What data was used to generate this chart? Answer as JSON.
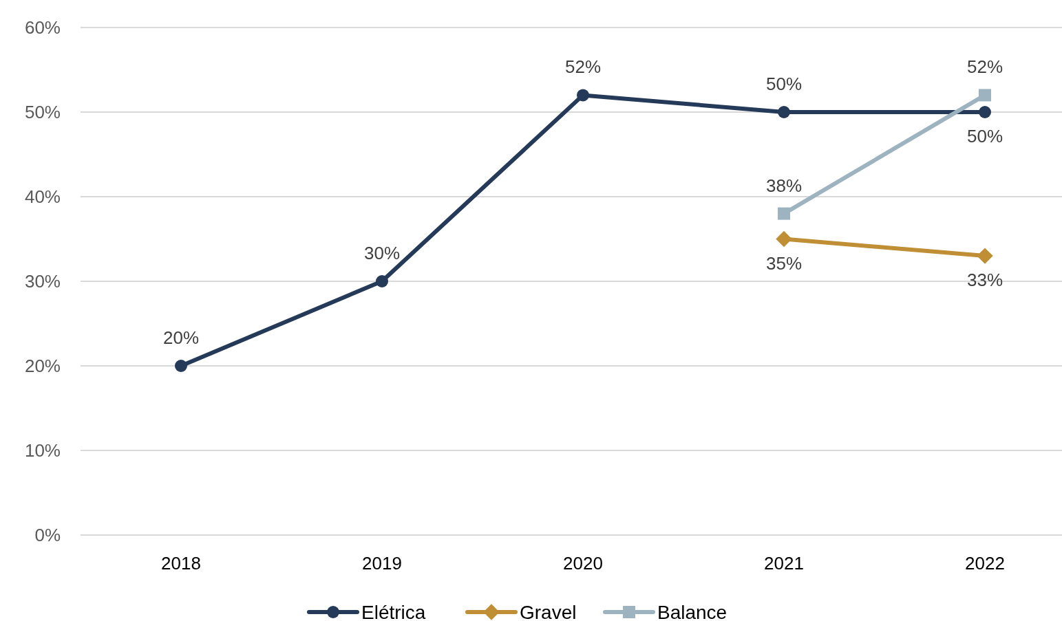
{
  "chart_data": {
    "type": "line",
    "categories": [
      "2018",
      "2019",
      "2020",
      "2021",
      "2022"
    ],
    "series": [
      {
        "name": "Elétrica",
        "color": "#243a58",
        "marker": "circle",
        "values": [
          20,
          30,
          52,
          50,
          50
        ],
        "value_labels": [
          "20%",
          "30%",
          "52%",
          "50%",
          "50%"
        ]
      },
      {
        "name": "Gravel",
        "color": "#c08e35",
        "marker": "diamond",
        "values": [
          null,
          null,
          null,
          35,
          33
        ],
        "value_labels": [
          null,
          null,
          null,
          "35%",
          "33%"
        ]
      },
      {
        "name": "Balance",
        "color": "#9db3bf",
        "marker": "square",
        "values": [
          null,
          null,
          null,
          38,
          52
        ],
        "value_labels": [
          null,
          null,
          null,
          "38%",
          "52%"
        ]
      }
    ],
    "ylim": [
      0,
      60
    ],
    "yticks": [
      {
        "value": 0,
        "label": "0%"
      },
      {
        "value": 10,
        "label": "10%"
      },
      {
        "value": 20,
        "label": "20%"
      },
      {
        "value": 30,
        "label": "30%"
      },
      {
        "value": 40,
        "label": "40%"
      },
      {
        "value": 50,
        "label": "50%"
      },
      {
        "value": 60,
        "label": "60%"
      }
    ],
    "grid": "y",
    "legend": "bottom",
    "line_style": "solid"
  }
}
